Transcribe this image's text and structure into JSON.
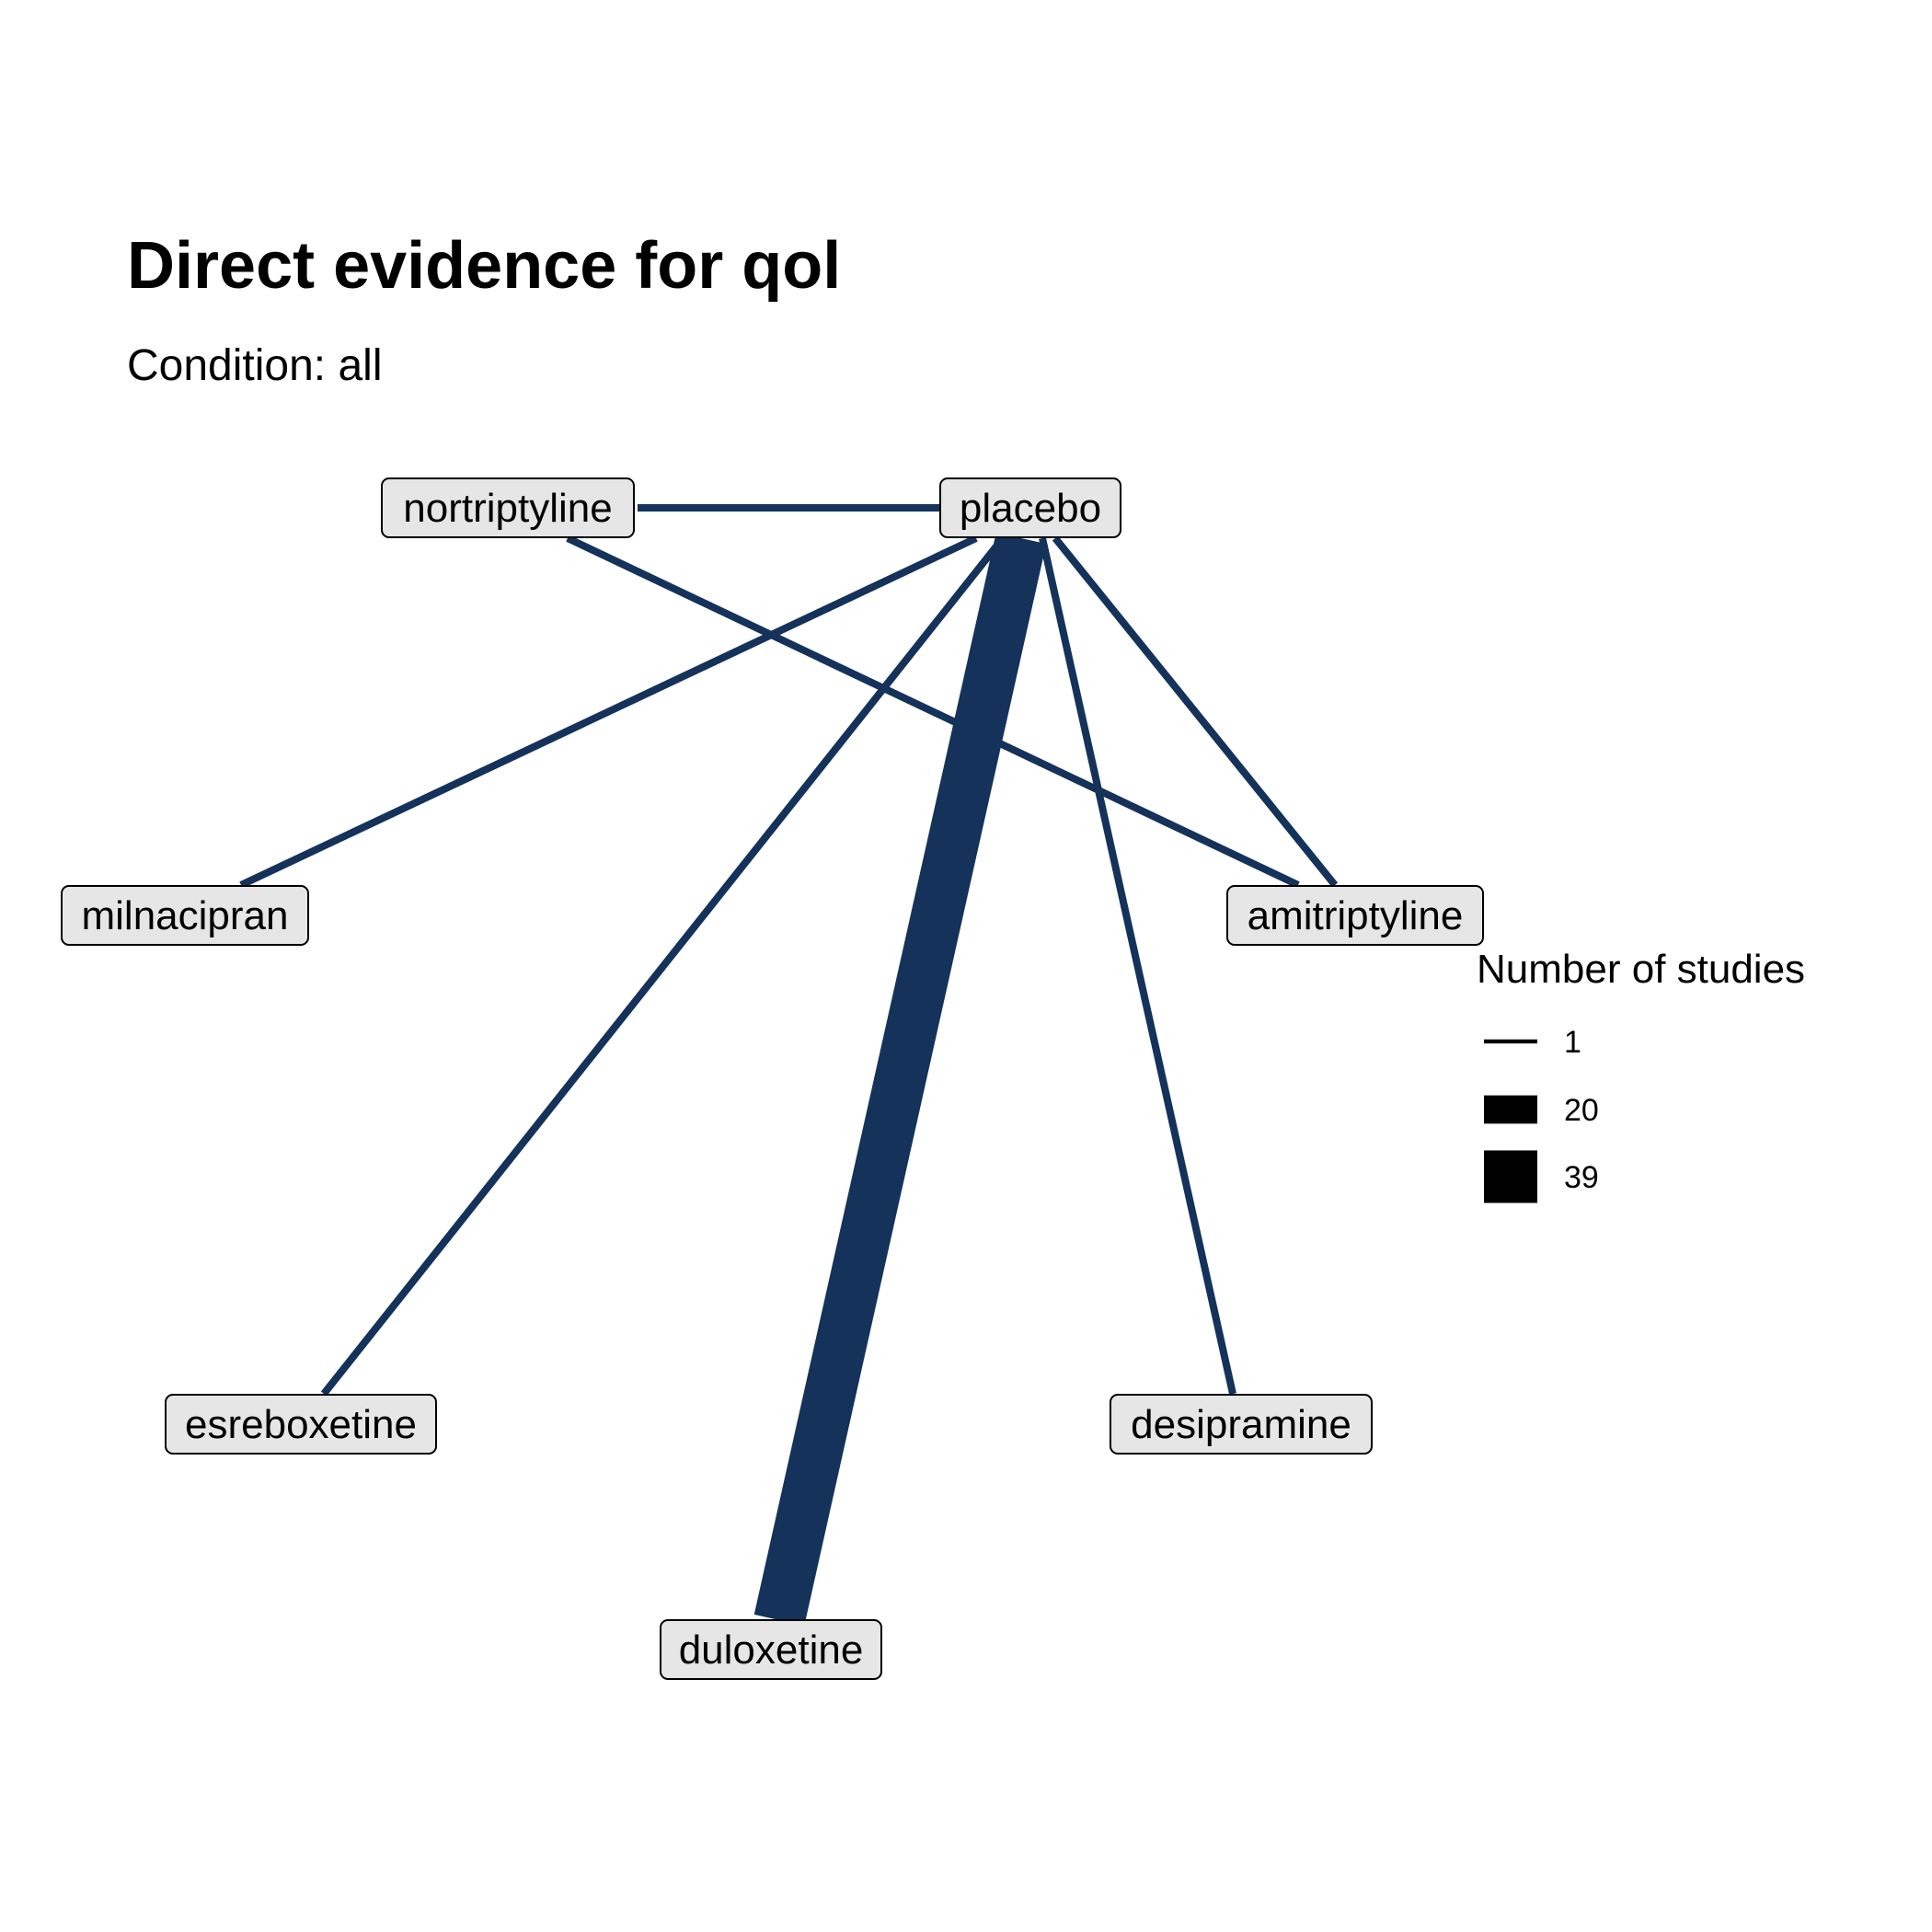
{
  "title": "Direct evidence for qol",
  "subtitle": "Condition: all",
  "colors": {
    "edge": "#14325a",
    "node_fill": "#e6e6e6",
    "node_border": "#000000",
    "legend_key": "#000000"
  },
  "chart_data": {
    "type": "network",
    "nodes": [
      {
        "id": "nortriptyline",
        "label": "nortriptyline"
      },
      {
        "id": "placebo",
        "label": "placebo"
      },
      {
        "id": "milnacipran",
        "label": "milnacipran"
      },
      {
        "id": "amitriptyline",
        "label": "amitriptyline"
      },
      {
        "id": "esreboxetine",
        "label": "esreboxetine"
      },
      {
        "id": "desipramine",
        "label": "desipramine"
      },
      {
        "id": "duloxetine",
        "label": "duloxetine"
      }
    ],
    "edges": [
      {
        "from": "nortriptyline",
        "to": "placebo",
        "studies": 1
      },
      {
        "from": "nortriptyline",
        "to": "amitriptyline",
        "studies": 1
      },
      {
        "from": "placebo",
        "to": "milnacipran",
        "studies": 1
      },
      {
        "from": "placebo",
        "to": "esreboxetine",
        "studies": 1
      },
      {
        "from": "placebo",
        "to": "duloxetine",
        "studies": 20
      },
      {
        "from": "placebo",
        "to": "desipramine",
        "studies": 1
      },
      {
        "from": "placebo",
        "to": "amitriptyline",
        "studies": 1
      }
    ],
    "legend": {
      "title": "Number of studies",
      "entries": [
        1,
        20,
        39
      ],
      "position": "right"
    }
  }
}
